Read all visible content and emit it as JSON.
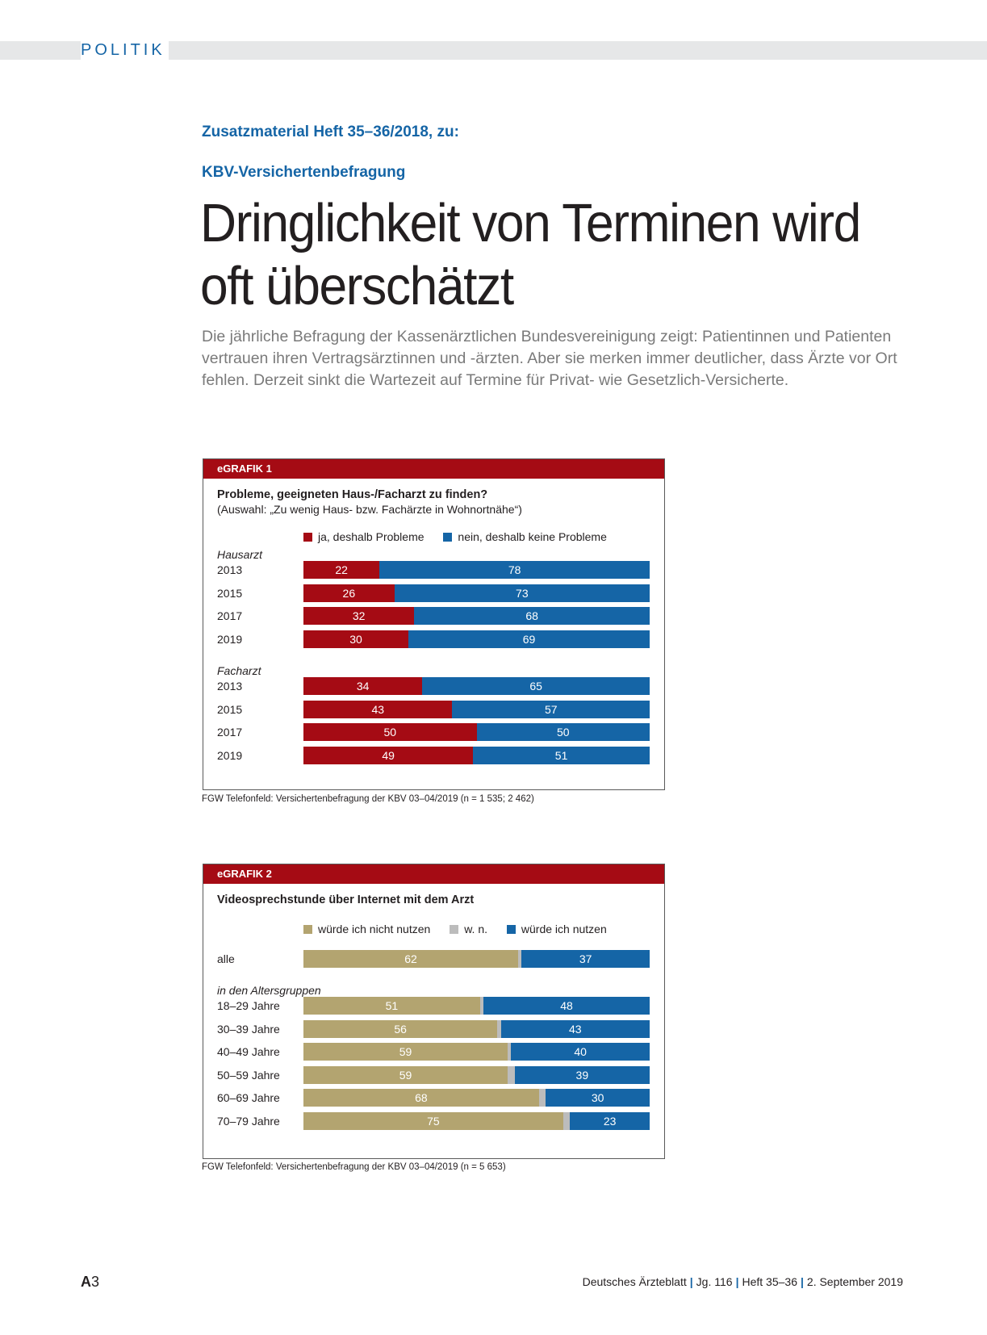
{
  "section": "POLITIK",
  "kicker1": "Zusatzmaterial Heft 35–36/2018, zu:",
  "kicker2": "KBV-Versichertenbefragung",
  "headline_line1": "Dringlichkeit von Terminen wird",
  "headline_line2": "oft überschätzt",
  "lead": "Die jährliche Befragung der Kassenärztlichen Bundesvereinigung zeigt: Patientinnen und Patienten vertrauen ihren Vertragsärztinnen und -ärzten. Aber sie merken immer deutlicher, dass Ärzte vor Ort fehlen. Derzeit sinkt die Wartezeit auf Termine für Privat- wie Gesetzlich-Versicherte.",
  "colors": {
    "accent_red": "#a50b14",
    "accent_blue": "#1565a6",
    "tan": "#b3a470",
    "grey": "#bcbcbc"
  },
  "chart_data": [
    {
      "type": "bar",
      "label": "eGRAFIK 1",
      "title": "Probleme, geeigneten Haus-/Facharzt zu finden?",
      "subtitle": "(Auswahl: „Zu wenig Haus- bzw. Fachärzte in Wohnortnähe“)",
      "series_names": [
        "ja, deshalb Probleme",
        "nein, deshalb keine Probleme"
      ],
      "series_colors": [
        "#a50b14",
        "#1565a6"
      ],
      "groups": [
        {
          "name": "Hausarzt",
          "rows": [
            {
              "label": "2013",
              "values": [
                22,
                78
              ]
            },
            {
              "label": "2015",
              "values": [
                26,
                73
              ]
            },
            {
              "label": "2017",
              "values": [
                32,
                68
              ]
            },
            {
              "label": "2019",
              "values": [
                30,
                69
              ]
            }
          ]
        },
        {
          "name": "Facharzt",
          "rows": [
            {
              "label": "2013",
              "values": [
                34,
                65
              ]
            },
            {
              "label": "2015",
              "values": [
                43,
                57
              ]
            },
            {
              "label": "2017",
              "values": [
                50,
                50
              ]
            },
            {
              "label": "2019",
              "values": [
                49,
                51
              ]
            }
          ]
        }
      ],
      "source": "FGW Telefonfeld: Versichertenbefragung der KBV 03–04/2019 (n = 1 535; 2 462)"
    },
    {
      "type": "bar",
      "label": "eGRAFIK 2",
      "title": "Videosprechstunde über Internet mit dem Arzt",
      "series_names": [
        "würde ich nicht nutzen",
        "w. n.",
        "würde ich nutzen"
      ],
      "series_colors": [
        "#b3a470",
        "#bcbcbc",
        "#1565a6"
      ],
      "groups": [
        {
          "name": "",
          "rows": [
            {
              "label": "alle",
              "values": [
                62,
                1,
                37
              ]
            }
          ]
        },
        {
          "name": "in den Altersgruppen",
          "rows": [
            {
              "label": "18–29 Jahre",
              "values": [
                51,
                1,
                48
              ]
            },
            {
              "label": "30–39 Jahre",
              "values": [
                56,
                1,
                43
              ]
            },
            {
              "label": "40–49 Jahre",
              "values": [
                59,
                1,
                40
              ]
            },
            {
              "label": "50–59 Jahre",
              "values": [
                59,
                2,
                39
              ]
            },
            {
              "label": "60–69 Jahre",
              "values": [
                68,
                2,
                30
              ]
            },
            {
              "label": "70–79 Jahre",
              "values": [
                75,
                2,
                23
              ]
            }
          ]
        }
      ],
      "source": "FGW Telefonfeld: Versichertenbefragung der KBV 03–04/2019 (n = 5 653)"
    }
  ],
  "footer": {
    "page_prefix": "A",
    "page_number": "3",
    "journal": "Deutsches Ärzteblatt",
    "volume": "Jg. 116",
    "issue": "Heft 35–36",
    "date": "2. September 2019"
  }
}
